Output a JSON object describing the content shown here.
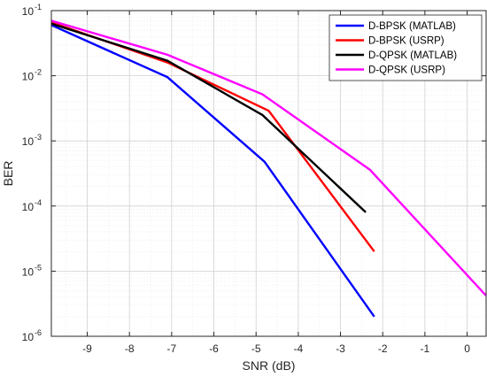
{
  "chart_data": {
    "type": "line",
    "xlabel": "SNR (dB)",
    "ylabel": "BER",
    "xlim": [
      -9.85,
      0.45
    ],
    "ylim_exp": [
      -6,
      -1
    ],
    "yscale": "log",
    "grid": true,
    "minor_grid": true,
    "legend_position": "top-right",
    "x_ticks": [
      -9,
      -8,
      -7,
      -6,
      -5,
      -4,
      -3,
      -2,
      -1,
      0
    ],
    "x_tick_labels": [
      "-9",
      "-8",
      "-7",
      "-6",
      "-5",
      "-4",
      "-3",
      "-2",
      "-1",
      "0"
    ],
    "y_tick_exponents": [
      -6,
      -5,
      -4,
      -3,
      -2,
      -1
    ],
    "y_tick_base": "10",
    "series": [
      {
        "name": "D-BPSK (MATLAB)",
        "color": "#0000ff",
        "x": [
          -9.85,
          -7.1,
          -4.8,
          -2.2
        ],
        "y": [
          0.06,
          0.0095,
          0.00048,
          2e-06
        ]
      },
      {
        "name": "D-BPSK (USRP)",
        "color": "#ff0000",
        "x": [
          -9.85,
          -7.1,
          -4.7,
          -2.2
        ],
        "y": [
          0.066,
          0.016,
          0.0029,
          2e-05
        ]
      },
      {
        "name": "D-QPSK (MATLAB)",
        "color": "#000000",
        "x": [
          -9.85,
          -7.1,
          -4.85,
          -2.4
        ],
        "y": [
          0.063,
          0.017,
          0.0025,
          8e-05
        ]
      },
      {
        "name": "D-QPSK (USRP)",
        "color": "#ff00ff",
        "x": [
          -9.85,
          -7.1,
          -4.85,
          -2.3,
          0.45
        ],
        "y": [
          0.07,
          0.021,
          0.0052,
          0.00036,
          4.2e-06
        ]
      }
    ]
  }
}
